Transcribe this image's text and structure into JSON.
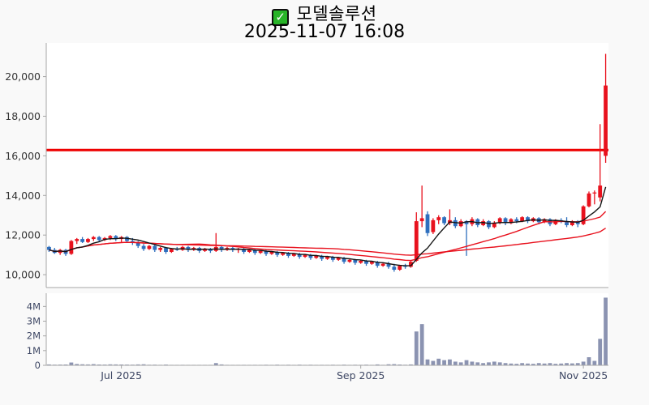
{
  "title": {
    "icon": "green-checkbox",
    "text": "모델솔루션",
    "subtitle": "2025-11-07 16:08",
    "check_glyph": "✓"
  },
  "colors": {
    "background": "#f9f9f9",
    "plot_bg": "#ffffff",
    "up_candle": "#e8111d",
    "down_candle": "#2e6fbe",
    "volume_bar": "#8b93b1",
    "ma_fast": "#151515",
    "ma_red": "#e8111d",
    "limit_line": "#ee0000",
    "axis_text": "#3d4663",
    "spine": "#a6a6a6"
  },
  "chart_data": {
    "type": "candlestick+volume",
    "title": "모델솔루션",
    "subtitle": "2025-11-07 16:08",
    "price_axis": {
      "tick_values": [
        10000,
        12000,
        14000,
        16000,
        18000,
        20000
      ],
      "tick_labels": [
        "10,000",
        "12,000",
        "14,000",
        "16,000",
        "18,000",
        "20,000"
      ],
      "ylim": [
        9350,
        21700
      ],
      "grid": false
    },
    "volume_axis": {
      "tick_values": [
        0,
        1000000,
        2000000,
        3000000,
        4000000
      ],
      "tick_labels": [
        "0",
        "1M",
        "2M",
        "3M",
        "4M"
      ],
      "ylim": [
        0,
        4900000
      ],
      "grid": false
    },
    "x_axis": {
      "labels": [
        {
          "label": "Jul 2025",
          "index": 13
        },
        {
          "label": "Sep 2025",
          "index": 56
        },
        {
          "label": "Nov 2025",
          "index": 96
        }
      ]
    },
    "limit_line": {
      "value": 16290
    },
    "overlays": [
      {
        "name": "ma-slow",
        "window": 48,
        "color": "#e8111d",
        "width": 1.4
      },
      {
        "name": "ma-mid",
        "window": 24,
        "color": "#e8111d",
        "width": 1.4
      },
      {
        "name": "ma-fast",
        "window": 7,
        "color": "#151515",
        "width": 1.4
      }
    ],
    "columns": [
      "date",
      "open",
      "high",
      "low",
      "close",
      "volume"
    ],
    "candles": [
      [
        "2025-06-12",
        11400,
        11450,
        11150,
        11250,
        60000
      ],
      [
        "2025-06-13",
        11250,
        11350,
        11050,
        11100,
        45000
      ],
      [
        "2025-06-16",
        11100,
        11300,
        11000,
        11250,
        50000
      ],
      [
        "2025-06-17",
        11250,
        11300,
        10950,
        11050,
        55000
      ],
      [
        "2025-06-18",
        11050,
        11750,
        11000,
        11700,
        190000
      ],
      [
        "2025-06-19",
        11700,
        11850,
        11550,
        11800,
        90000
      ],
      [
        "2025-06-20",
        11800,
        11900,
        11600,
        11650,
        70000
      ],
      [
        "2025-06-23",
        11650,
        11850,
        11600,
        11800,
        60000
      ],
      [
        "2025-06-24",
        11800,
        11950,
        11700,
        11900,
        80000
      ],
      [
        "2025-06-25",
        11900,
        11950,
        11650,
        11750,
        55000
      ],
      [
        "2025-06-26",
        11750,
        11900,
        11700,
        11850,
        50000
      ],
      [
        "2025-06-27",
        11850,
        12000,
        11750,
        11950,
        65000
      ],
      [
        "2025-06-30",
        11950,
        12000,
        11700,
        11800,
        60000
      ],
      [
        "2025-07-01",
        11800,
        11950,
        11650,
        11900,
        55000
      ],
      [
        "2025-07-02",
        11900,
        11950,
        11600,
        11700,
        50000
      ],
      [
        "2025-07-03",
        11700,
        11850,
        11500,
        11600,
        45000
      ],
      [
        "2025-07-04",
        11600,
        11700,
        11350,
        11450,
        60000
      ],
      [
        "2025-07-07",
        11450,
        11550,
        11200,
        11300,
        70000
      ],
      [
        "2025-07-08",
        11300,
        11500,
        11250,
        11450,
        40000
      ],
      [
        "2025-07-09",
        11450,
        11500,
        11150,
        11250,
        45000
      ],
      [
        "2025-07-10",
        11250,
        11400,
        11150,
        11350,
        35000
      ],
      [
        "2025-07-11",
        11350,
        11400,
        11050,
        11150,
        50000
      ],
      [
        "2025-07-14",
        11150,
        11350,
        11100,
        11300,
        30000
      ],
      [
        "2025-07-15",
        11300,
        11400,
        11200,
        11250,
        25000
      ],
      [
        "2025-07-16",
        11250,
        11450,
        11200,
        11400,
        35000
      ],
      [
        "2025-07-17",
        11400,
        11450,
        11150,
        11250,
        30000
      ],
      [
        "2025-07-18",
        11250,
        11400,
        11200,
        11350,
        25000
      ],
      [
        "2025-07-21",
        11350,
        11400,
        11100,
        11200,
        30000
      ],
      [
        "2025-07-22",
        11200,
        11350,
        11150,
        11300,
        25000
      ],
      [
        "2025-07-23",
        11300,
        11350,
        11100,
        11200,
        30000
      ],
      [
        "2025-07-24",
        11200,
        12100,
        11150,
        11400,
        150000
      ],
      [
        "2025-07-25",
        11400,
        11450,
        11150,
        11250,
        60000
      ],
      [
        "2025-07-28",
        11250,
        11400,
        11200,
        11350,
        35000
      ],
      [
        "2025-07-29",
        11350,
        11400,
        11150,
        11250,
        30000
      ],
      [
        "2025-07-30",
        11250,
        11350,
        11100,
        11300,
        25000
      ],
      [
        "2025-07-31",
        11300,
        11350,
        11050,
        11150,
        35000
      ],
      [
        "2025-08-01",
        11150,
        11300,
        11100,
        11250,
        30000
      ],
      [
        "2025-08-04",
        11250,
        11300,
        11000,
        11100,
        35000
      ],
      [
        "2025-08-05",
        11100,
        11250,
        11050,
        11200,
        25000
      ],
      [
        "2025-08-06",
        11200,
        11250,
        10950,
        11050,
        40000
      ],
      [
        "2025-08-07",
        11050,
        11200,
        11000,
        11150,
        30000
      ],
      [
        "2025-08-08",
        11150,
        11200,
        10900,
        11000,
        45000
      ],
      [
        "2025-08-11",
        11000,
        11150,
        10950,
        11100,
        25000
      ],
      [
        "2025-08-12",
        11100,
        11150,
        10850,
        10950,
        40000
      ],
      [
        "2025-08-13",
        10950,
        11100,
        10900,
        11050,
        30000
      ],
      [
        "2025-08-14",
        11050,
        11100,
        10800,
        10900,
        45000
      ],
      [
        "2025-08-18",
        10900,
        11050,
        10850,
        11000,
        25000
      ],
      [
        "2025-08-19",
        11000,
        11050,
        10750,
        10850,
        40000
      ],
      [
        "2025-08-20",
        10850,
        11000,
        10800,
        10950,
        30000
      ],
      [
        "2025-08-21",
        10950,
        11000,
        10700,
        10800,
        35000
      ],
      [
        "2025-08-22",
        10800,
        10950,
        10750,
        10900,
        25000
      ],
      [
        "2025-08-25",
        10900,
        10950,
        10650,
        10750,
        40000
      ],
      [
        "2025-08-26",
        10750,
        10900,
        10700,
        10850,
        30000
      ],
      [
        "2025-08-27",
        10850,
        10900,
        10550,
        10650,
        45000
      ],
      [
        "2025-08-28",
        10650,
        10800,
        10600,
        10750,
        30000
      ],
      [
        "2025-08-29",
        10750,
        10800,
        10500,
        10600,
        40000
      ],
      [
        "2025-09-01",
        10600,
        10750,
        10550,
        10700,
        35000
      ],
      [
        "2025-09-02",
        10700,
        10750,
        10450,
        10550,
        45000
      ],
      [
        "2025-09-03",
        10550,
        10700,
        10500,
        10650,
        30000
      ],
      [
        "2025-09-04",
        10650,
        10700,
        10350,
        10450,
        60000
      ],
      [
        "2025-09-05",
        10450,
        10600,
        10400,
        10550,
        35000
      ],
      [
        "2025-09-08",
        10550,
        10650,
        10300,
        10400,
        70000
      ],
      [
        "2025-09-09",
        10400,
        10550,
        10150,
        10250,
        80000
      ],
      [
        "2025-09-10",
        10250,
        10500,
        10200,
        10450,
        55000
      ],
      [
        "2025-09-11",
        10450,
        10550,
        10300,
        10400,
        40000
      ],
      [
        "2025-09-12",
        10400,
        10700,
        10350,
        10650,
        60000
      ],
      [
        "2025-09-15",
        10700,
        13150,
        10650,
        12700,
        2300000
      ],
      [
        "2025-09-16",
        12700,
        14500,
        12400,
        12850,
        2800000
      ],
      [
        "2025-09-17",
        13050,
        13200,
        11950,
        12100,
        400000
      ],
      [
        "2025-09-18",
        12150,
        12850,
        12050,
        12750,
        300000
      ],
      [
        "2025-09-19",
        12750,
        13000,
        12550,
        12900,
        450000
      ],
      [
        "2025-09-22",
        12900,
        12950,
        12500,
        12600,
        350000
      ],
      [
        "2025-09-23",
        12600,
        13300,
        12500,
        12750,
        400000
      ],
      [
        "2025-09-24",
        12750,
        12900,
        12350,
        12450,
        250000
      ],
      [
        "2025-09-25",
        12450,
        12800,
        12400,
        12700,
        200000
      ],
      [
        "2025-09-26",
        12700,
        12750,
        10950,
        12550,
        350000
      ],
      [
        "2025-09-29",
        12550,
        12900,
        12450,
        12800,
        250000
      ],
      [
        "2025-09-30",
        12800,
        12850,
        12400,
        12500,
        200000
      ],
      [
        "2025-10-01",
        12500,
        12800,
        12450,
        12700,
        150000
      ],
      [
        "2025-10-02",
        12700,
        12750,
        12300,
        12400,
        200000
      ],
      [
        "2025-10-10",
        12400,
        12700,
        12350,
        12600,
        250000
      ],
      [
        "2025-10-13",
        12600,
        12900,
        12550,
        12850,
        200000
      ],
      [
        "2025-10-14",
        12850,
        12900,
        12500,
        12600,
        150000
      ],
      [
        "2025-10-15",
        12600,
        12850,
        12550,
        12800,
        120000
      ],
      [
        "2025-10-16",
        12800,
        12900,
        12600,
        12700,
        100000
      ],
      [
        "2025-10-17",
        12700,
        12950,
        12650,
        12900,
        150000
      ],
      [
        "2025-10-20",
        12900,
        12950,
        12600,
        12700,
        120000
      ],
      [
        "2025-10-21",
        12700,
        12900,
        12650,
        12850,
        100000
      ],
      [
        "2025-10-22",
        12850,
        12900,
        12550,
        12650,
        150000
      ],
      [
        "2025-10-23",
        12650,
        12850,
        12600,
        12800,
        120000
      ],
      [
        "2025-10-24",
        12800,
        12850,
        12450,
        12550,
        150000
      ],
      [
        "2025-10-27",
        12550,
        12800,
        12500,
        12750,
        100000
      ],
      [
        "2025-10-28",
        12750,
        12850,
        12600,
        12700,
        120000
      ],
      [
        "2025-10-29",
        12700,
        12900,
        12400,
        12500,
        150000
      ],
      [
        "2025-10-30",
        12500,
        12750,
        12450,
        12700,
        130000
      ],
      [
        "2025-10-31",
        12700,
        12750,
        12400,
        12550,
        150000
      ],
      [
        "2025-11-03",
        12550,
        13500,
        12500,
        13450,
        250000
      ],
      [
        "2025-11-04",
        13450,
        14200,
        13400,
        14100,
        550000
      ],
      [
        "2025-11-05",
        14100,
        14250,
        13550,
        14150,
        300000
      ],
      [
        "2025-11-06",
        13900,
        17600,
        13700,
        14500,
        1800000
      ],
      [
        "2025-11-07",
        16000,
        21150,
        15650,
        19550,
        4600000
      ]
    ]
  }
}
